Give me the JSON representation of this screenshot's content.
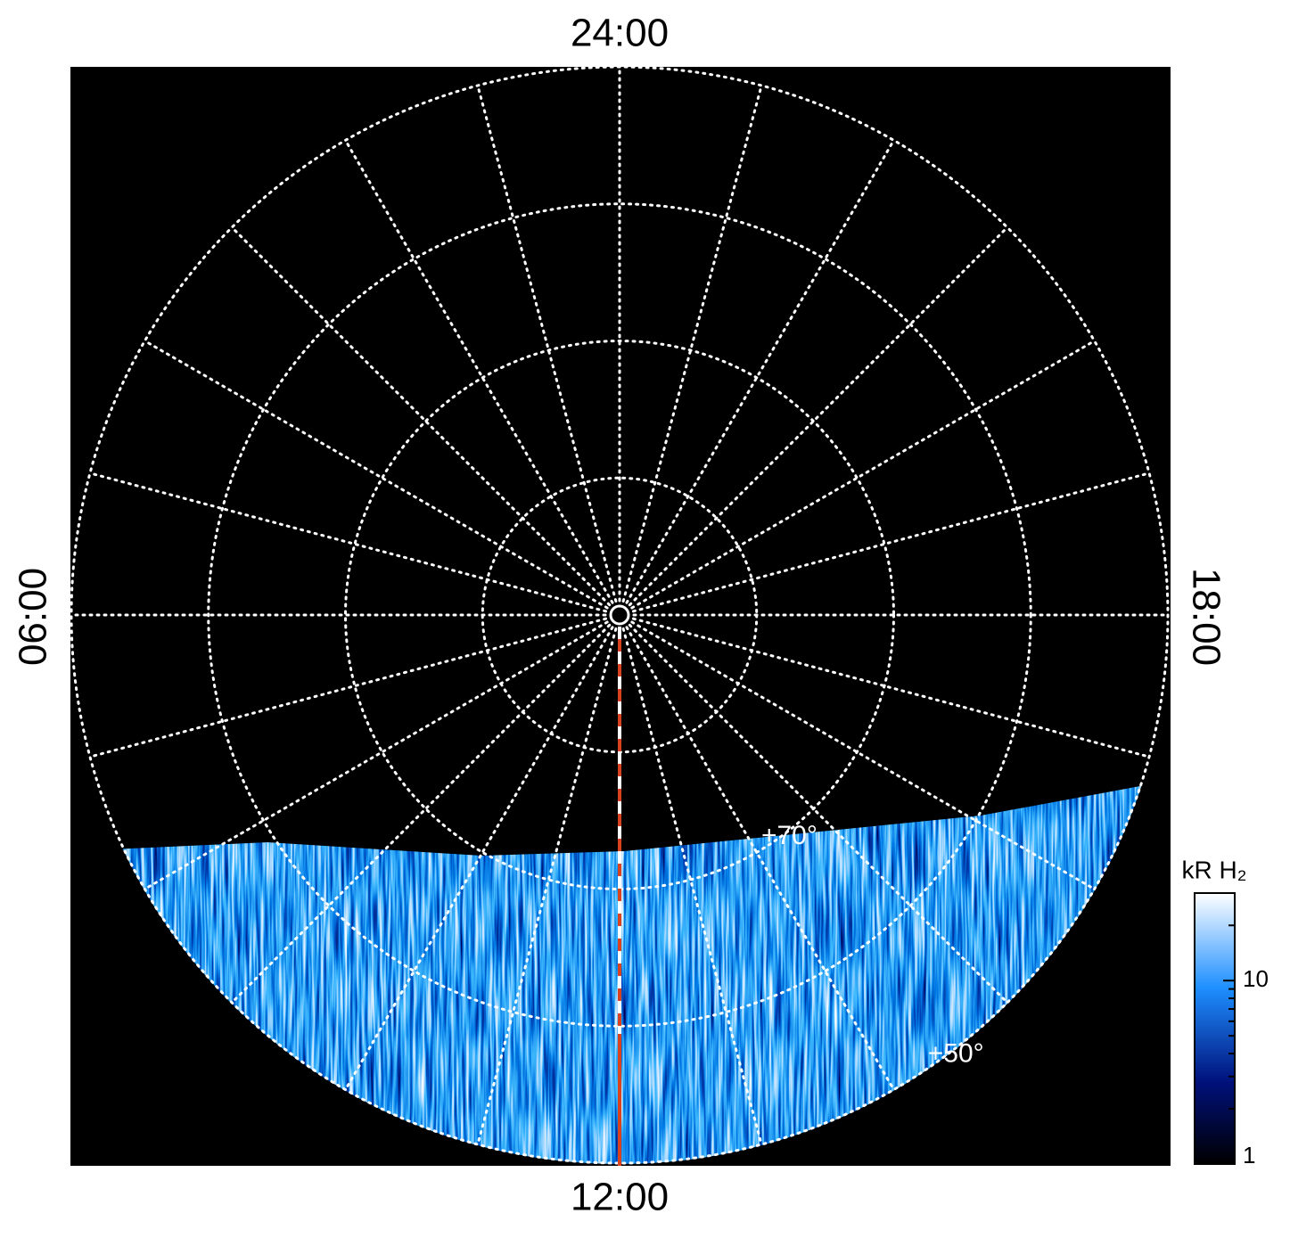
{
  "local_time_labels": {
    "top": "24:00",
    "bottom": "12:00",
    "left": "06:00",
    "right": "18:00"
  },
  "latitude": {
    "lim": [
      90,
      50
    ],
    "circles": [
      80,
      70,
      60,
      50
    ],
    "labels": [
      {
        "value": 70,
        "label": "+70°"
      },
      {
        "value": 50,
        "label": "+50°"
      }
    ]
  },
  "colorbar": {
    "title": "kR H₂",
    "scale": "log",
    "lim": [
      1,
      30
    ],
    "ticks": [
      1,
      10
    ]
  }
}
